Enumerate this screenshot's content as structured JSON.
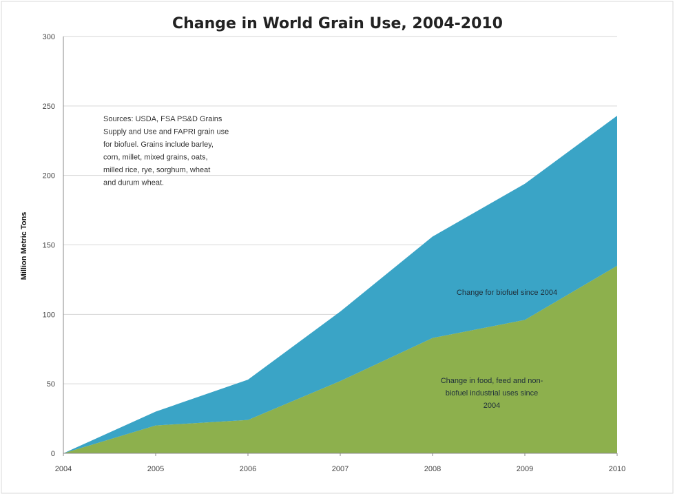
{
  "chart_data": {
    "type": "area",
    "stacked": true,
    "title": "Change in World Grain Use, 2004-2010",
    "ylabel": "Million Metric Tons",
    "xlabel": "",
    "x": [
      "2004",
      "2005",
      "2006",
      "2007",
      "2008",
      "2009",
      "2010"
    ],
    "ylim": [
      0,
      300
    ],
    "yticks": [
      0,
      50,
      100,
      150,
      200,
      250,
      300
    ],
    "grid": true,
    "series": [
      {
        "name": "Change in food, feed and non-biofuel industrial uses since 2004",
        "values": [
          0,
          20,
          24,
          52,
          83,
          96,
          135
        ],
        "color": "#8db04d",
        "label_lines": [
          "Change in food, feed and non-",
          "biofuel industrial uses since",
          "2004"
        ]
      },
      {
        "name": "Change for biofuel since 2004",
        "values": [
          0,
          10,
          29,
          50,
          73,
          98,
          108
        ],
        "color": "#3aa4c6",
        "label_lines": [
          "Change for biofuel since 2004"
        ]
      }
    ],
    "annotation_lines": [
      "Sources: USDA, FSA PS&D Grains",
      "Supply and Use and FAPRI grain use",
      "for biofuel. Grains include barley,",
      "corn, millet, mixed grains, oats,",
      "milled rice, rye, sorghum, wheat",
      "and durum wheat."
    ]
  }
}
